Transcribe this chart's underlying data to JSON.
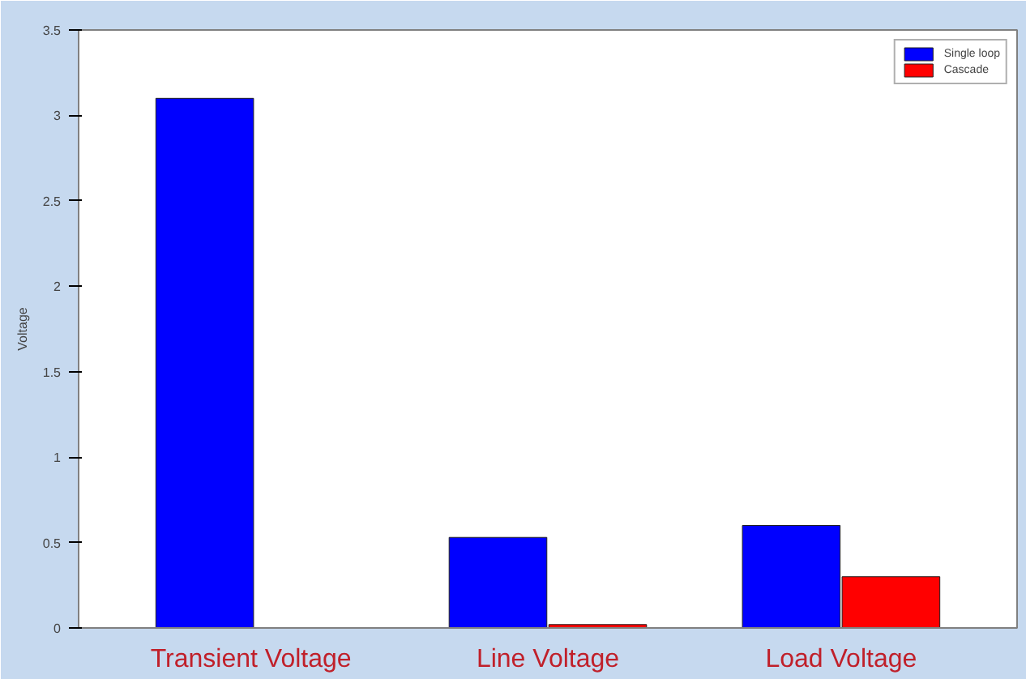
{
  "chart_data": {
    "type": "bar",
    "ylabel": "Voltage",
    "categories": [
      "Transient  Voltage",
      "Line Voltage",
      "Load Voltage"
    ],
    "series": [
      {
        "name": "Single loop",
        "color": "#0000ff",
        "values": [
          3.1,
          0.53,
          0.6
        ]
      },
      {
        "name": "Cascade",
        "color": "#ff0000",
        "values": [
          null,
          0.02,
          0.3
        ]
      }
    ],
    "ylim": [
      0,
      3.5
    ],
    "yticks": [
      0,
      0.5,
      1,
      1.5,
      2,
      2.5,
      3,
      3.5
    ],
    "grid": false,
    "legend": "top right"
  }
}
